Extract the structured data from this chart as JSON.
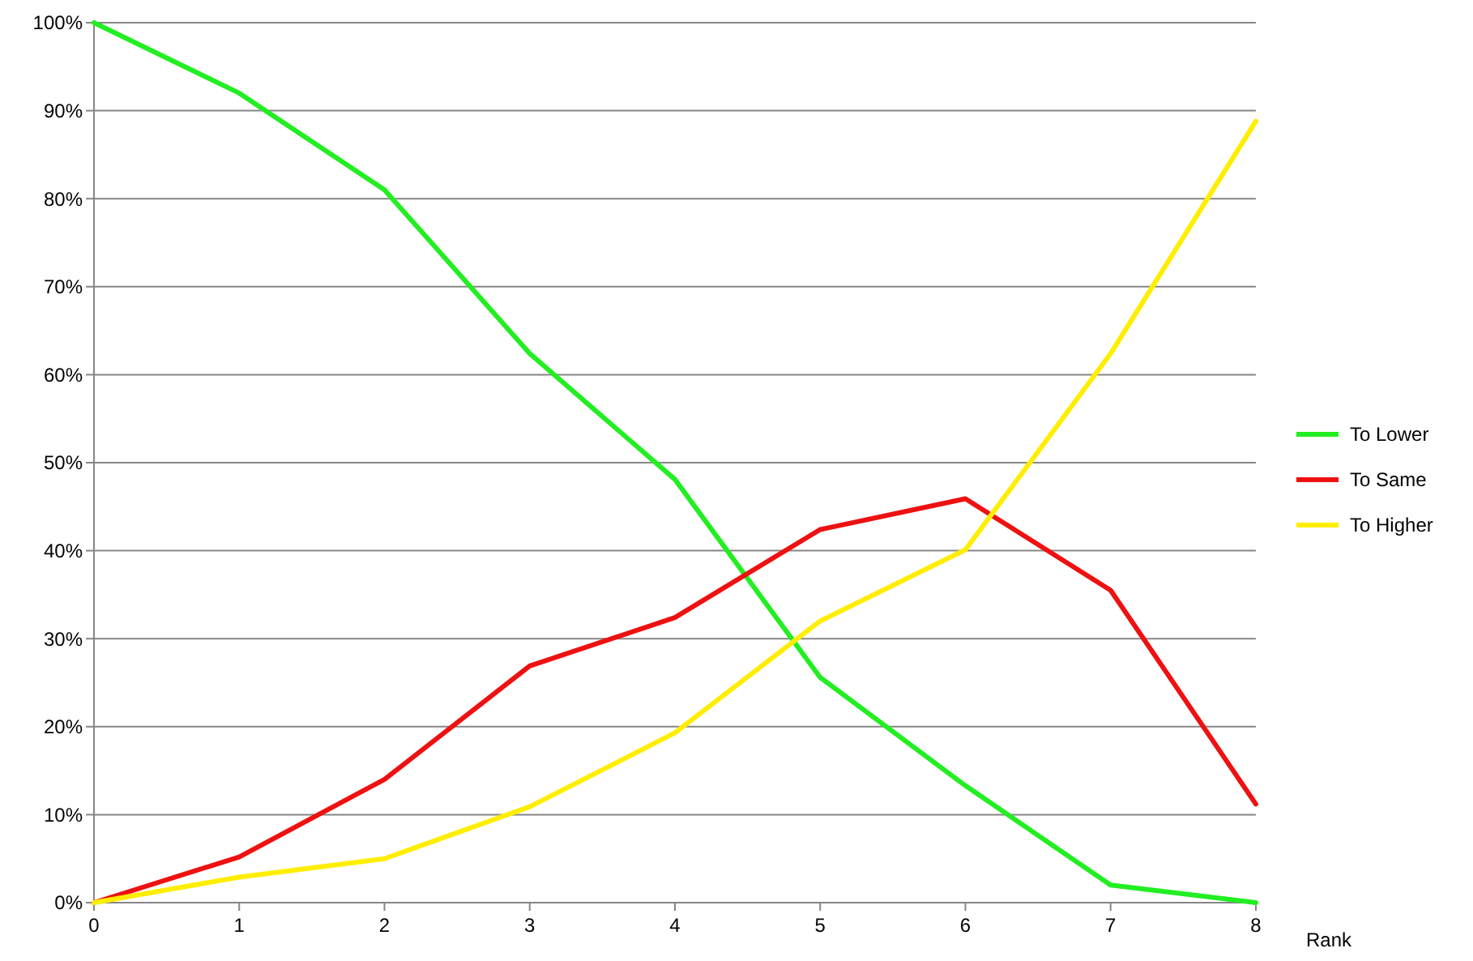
{
  "chart_data": {
    "type": "line",
    "xlabel": "Rank",
    "x": [
      0,
      1,
      2,
      3,
      4,
      5,
      6,
      7,
      8
    ],
    "series": [
      {
        "name": "To Lower",
        "color": "#22ee22",
        "values": [
          100,
          92,
          81,
          62.4,
          48.1,
          25.6,
          13.3,
          2,
          0
        ]
      },
      {
        "name": "To Same",
        "color": "#ee1111",
        "values": [
          0,
          5.2,
          14,
          26.9,
          32.4,
          42.4,
          45.9,
          35.5,
          11.2
        ]
      },
      {
        "name": "To Higher",
        "color": "#ffee00",
        "values": [
          0,
          2.9,
          5,
          10.9,
          19.3,
          32,
          40.1,
          62.4,
          88.8
        ]
      }
    ],
    "xlim": [
      0,
      8
    ],
    "xticks": [
      0,
      1,
      2,
      3,
      4,
      5,
      6,
      7,
      8
    ],
    "ylim": [
      0,
      100
    ],
    "yticks": [
      {
        "value": 0,
        "label": "0%"
      },
      {
        "value": 10,
        "label": "10%"
      },
      {
        "value": 20,
        "label": "20%"
      },
      {
        "value": 30,
        "label": "30%"
      },
      {
        "value": 40,
        "label": "40%"
      },
      {
        "value": 50,
        "label": "50%"
      },
      {
        "value": 60,
        "label": "60%"
      },
      {
        "value": 70,
        "label": "70%"
      },
      {
        "value": 80,
        "label": "80%"
      },
      {
        "value": 90,
        "label": "90%"
      },
      {
        "value": 100,
        "label": "100%"
      }
    ],
    "grid": "y",
    "legend": "right",
    "marker": "none",
    "line_style": "solid"
  }
}
